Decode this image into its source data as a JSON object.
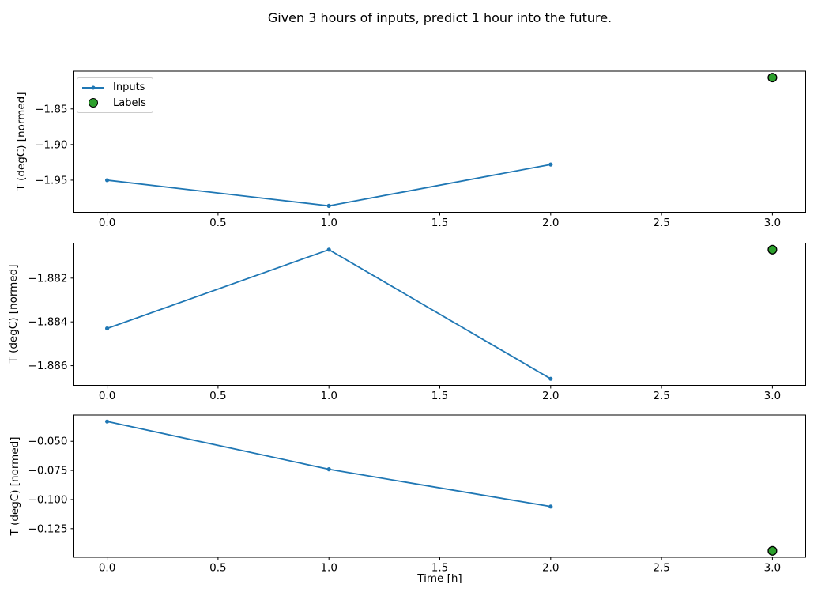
{
  "figure": {
    "title": "Given 3 hours of inputs, predict 1 hour into the future.",
    "xlabel": "Time [h]",
    "ylabel": "T (degC) [normed]",
    "legend": {
      "inputs_label": "Inputs",
      "labels_label": "Labels"
    },
    "colors": {
      "inputs_line": "#1f77b4",
      "labels_marker": "#2ca02c",
      "marker_edge": "#000000",
      "axis": "#000000",
      "legend_border": "#cccccc"
    }
  },
  "chart_data": [
    {
      "type": "line",
      "subplot": 1,
      "ylabel": "T (degC) [normed]",
      "series": [
        {
          "name": "Inputs",
          "type": "line+marker",
          "x": [
            0,
            1,
            2
          ],
          "y": [
            -1.95,
            -1.986,
            -1.928
          ]
        },
        {
          "name": "Labels",
          "type": "scatter",
          "x": [
            3
          ],
          "y": [
            -1.806
          ]
        }
      ],
      "xlim": [
        -0.15,
        3.15
      ],
      "ylim": [
        -1.995,
        -1.797
      ],
      "xticks": {
        "values": [
          0,
          0.5,
          1,
          1.5,
          2,
          2.5,
          3
        ],
        "labels": [
          "0.0",
          "0.5",
          "1.0",
          "1.5",
          "2.0",
          "2.5",
          "3.0"
        ]
      },
      "yticks": {
        "values": [
          -1.85,
          -1.9,
          -1.95
        ],
        "labels": [
          "−1.85",
          "−1.90",
          "−1.95"
        ]
      },
      "grid": false,
      "legend_position": "upper-left"
    },
    {
      "type": "line",
      "subplot": 2,
      "ylabel": "T (degC) [normed]",
      "series": [
        {
          "name": "Inputs",
          "type": "line+marker",
          "x": [
            0,
            1,
            2
          ],
          "y": [
            -1.8843,
            -1.8807,
            -1.8866
          ]
        },
        {
          "name": "Labels",
          "type": "scatter",
          "x": [
            3
          ],
          "y": [
            -1.8807
          ]
        }
      ],
      "xlim": [
        -0.15,
        3.15
      ],
      "ylim": [
        -1.8869,
        -1.8804
      ],
      "xticks": {
        "values": [
          0,
          0.5,
          1,
          1.5,
          2,
          2.5,
          3
        ],
        "labels": [
          "0.0",
          "0.5",
          "1.0",
          "1.5",
          "2.0",
          "2.5",
          "3.0"
        ]
      },
      "yticks": {
        "values": [
          -1.882,
          -1.884,
          -1.886
        ],
        "labels": [
          "−1.882",
          "−1.884",
          "−1.886"
        ]
      },
      "grid": false,
      "legend_position": "none"
    },
    {
      "type": "line",
      "subplot": 3,
      "ylabel": "T (degC) [normed]",
      "series": [
        {
          "name": "Inputs",
          "type": "line+marker",
          "x": [
            0,
            1,
            2
          ],
          "y": [
            -0.033,
            -0.074,
            -0.106
          ]
        },
        {
          "name": "Labels",
          "type": "scatter",
          "x": [
            3
          ],
          "y": [
            -0.144
          ]
        }
      ],
      "xlim": [
        -0.15,
        3.15
      ],
      "ylim": [
        -0.14955,
        -0.02745
      ],
      "xticks": {
        "values": [
          0,
          0.5,
          1,
          1.5,
          2,
          2.5,
          3
        ],
        "labels": [
          "0.0",
          "0.5",
          "1.0",
          "1.5",
          "2.0",
          "2.5",
          "3.0"
        ]
      },
      "yticks": {
        "values": [
          -0.05,
          -0.075,
          -0.1,
          -0.125
        ],
        "labels": [
          "−0.050",
          "−0.075",
          "−0.100",
          "−0.125"
        ]
      },
      "grid": false,
      "legend_position": "none"
    }
  ]
}
